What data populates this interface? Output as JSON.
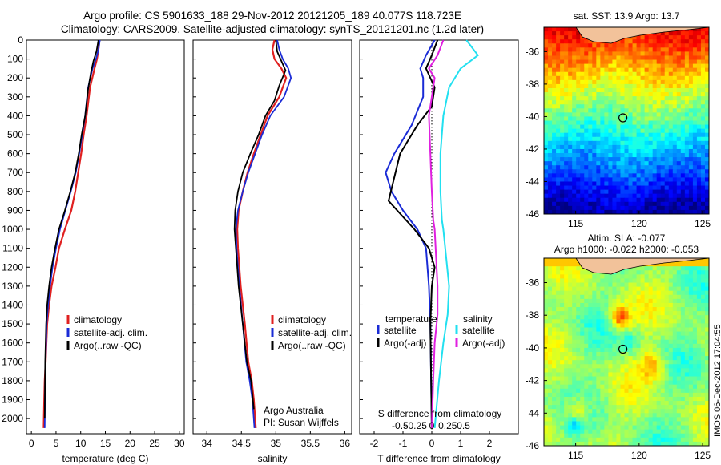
{
  "header": {
    "line1": "Argo profile: CS 5901633_188 29-Nov-2012 20121205_189 40.077S 118.723E",
    "line2": "Climatology: CARS2009. Satellite-adjusted climatology: synTS_20121201.nc (1.2d later)"
  },
  "side_label": "IMOS 06-Dec-2012 17:04:55",
  "colors": {
    "climatology": "#e02020",
    "satellite": "#1a2bd6",
    "argo": "#000000",
    "cyan": "#22e0f0",
    "magenta": "#e020e0",
    "land": "#f2c29a"
  },
  "chart_data": [
    {
      "type": "line",
      "xlabel": "temperature (deg C)",
      "ylabel": "",
      "xlim": [
        -1,
        31
      ],
      "ylim": [
        2080,
        0
      ],
      "xticks": [
        "0",
        "5",
        "10",
        "15",
        "20",
        "25",
        "30"
      ],
      "yticks": [
        "0",
        "100",
        "200",
        "300",
        "400",
        "500",
        "600",
        "700",
        "800",
        "900",
        "1000",
        "1100",
        "1200",
        "1300",
        "1400",
        "1500",
        "1600",
        "1700",
        "1800",
        "1900",
        "2000"
      ],
      "legend": [
        "climatology",
        "satellite-adj. clim.",
        "Argo(..raw -QC)"
      ],
      "legend_position": "lower-middle",
      "series": [
        {
          "name": "climatology",
          "color": "#e02020",
          "x": [
            13.8,
            13.6,
            13.3,
            12.8,
            11.9,
            11.2,
            10.6,
            10.1,
            9.5,
            8.9,
            8.1,
            6.8,
            5.6,
            4.9,
            4.1,
            3.6,
            3.2,
            2.9,
            2.7,
            2.6,
            2.5
          ],
          "y": [
            0,
            50,
            100,
            150,
            250,
            400,
            500,
            600,
            700,
            800,
            900,
            1000,
            1100,
            1200,
            1300,
            1400,
            1500,
            1700,
            1800,
            1900,
            2050
          ]
        },
        {
          "name": "satellite-adj. clim.",
          "color": "#1a2bd6",
          "x": [
            13.9,
            13.6,
            13.1,
            12.4,
            11.5,
            10.9,
            10.3,
            9.7,
            9.0,
            8.0,
            6.9,
            5.8,
            5.0,
            4.3,
            3.8,
            3.4,
            3.1,
            2.9,
            2.8,
            2.7
          ],
          "y": [
            0,
            50,
            100,
            150,
            250,
            400,
            500,
            600,
            700,
            800,
            900,
            1000,
            1100,
            1200,
            1300,
            1400,
            1500,
            1700,
            1800,
            2050
          ]
        },
        {
          "name": "Argo(..raw -QC)",
          "color": "#000000",
          "x": [
            13.6,
            13.2,
            12.6,
            12.1,
            11.5,
            10.9,
            10.2,
            9.6,
            8.9,
            7.9,
            6.8,
            5.6,
            4.8,
            4.1,
            3.6,
            3.2,
            3.0,
            2.8,
            2.7
          ],
          "y": [
            0,
            60,
            110,
            170,
            260,
            400,
            500,
            600,
            700,
            800,
            900,
            1000,
            1100,
            1200,
            1300,
            1400,
            1500,
            1700,
            2000
          ]
        }
      ]
    },
    {
      "type": "line",
      "xlabel": "salinity",
      "ylabel": "",
      "xlim": [
        33.8,
        36.1
      ],
      "ylim": [
        2080,
        0
      ],
      "xticks": [
        "34",
        "34.5",
        "35",
        "35.5",
        "36"
      ],
      "legend": [
        "climatology",
        "satellite-adj. clim.",
        "Argo(..raw -QC)"
      ],
      "legend_position": "lower-right",
      "annotations": [
        "Argo Australia",
        "PI: Susan Wijffels"
      ],
      "series": [
        {
          "name": "climatology",
          "color": "#e02020",
          "x": [
            34.98,
            34.95,
            34.98,
            35.08,
            35.15,
            35.05,
            34.88,
            34.78,
            34.68,
            34.59,
            34.52,
            34.46,
            34.44,
            34.45,
            34.49,
            34.55,
            34.6,
            34.65,
            34.68,
            34.71
          ],
          "y": [
            0,
            50,
            100,
            150,
            200,
            300,
            400,
            500,
            600,
            700,
            800,
            900,
            1000,
            1100,
            1300,
            1500,
            1700,
            1800,
            1900,
            2050
          ]
        },
        {
          "name": "satellite-adj. clim.",
          "color": "#1a2bd6",
          "x": [
            35.02,
            35.05,
            35.1,
            35.18,
            35.22,
            35.12,
            34.92,
            34.8,
            34.7,
            34.6,
            34.52,
            34.45,
            34.42,
            34.43,
            34.47,
            34.52,
            34.57,
            34.62,
            34.66,
            34.69
          ],
          "y": [
            0,
            50,
            100,
            150,
            200,
            300,
            400,
            500,
            600,
            700,
            800,
            900,
            1000,
            1100,
            1300,
            1500,
            1700,
            1800,
            1900,
            2050
          ]
        },
        {
          "name": "Argo(..raw -QC)",
          "color": "#000000",
          "x": [
            35.0,
            35.02,
            35.08,
            35.14,
            35.05,
            34.98,
            34.85,
            34.75,
            34.63,
            34.52,
            34.45,
            34.41,
            34.4,
            34.42,
            34.46,
            34.52,
            34.58,
            34.64,
            34.68
          ],
          "y": [
            0,
            60,
            110,
            160,
            240,
            320,
            400,
            500,
            600,
            700,
            800,
            900,
            1000,
            1100,
            1300,
            1500,
            1700,
            1800,
            1950
          ]
        }
      ]
    },
    {
      "type": "line",
      "xlabel": "T difference from climatology",
      "ylabel": "",
      "xlim": [
        -2.5,
        3.0
      ],
      "ylim": [
        2080,
        0
      ],
      "xticks": [
        "-2",
        "-1",
        "0",
        "1",
        "2"
      ],
      "secondary_xlabel": "S difference from climatology",
      "secondary_xticks": [
        "-0.5",
        "-0.25",
        "0",
        "0.25",
        "0.5"
      ],
      "legend": [
        "temperature",
        "satellite",
        "Argo(-adj)",
        "salinity",
        "satellite",
        "Argo(-adj)"
      ],
      "legend_position": "lower-middle",
      "series": [
        {
          "name": "satellite",
          "color": "#1a2bd6",
          "x": [
            0.1,
            -0.2,
            -0.4,
            -0.3,
            -0.3,
            -0.7,
            -1.3,
            -1.6,
            -1.4,
            -1.0,
            -0.5,
            -0.2,
            -0.1,
            -0.05,
            0.0
          ],
          "y": [
            0,
            80,
            150,
            200,
            300,
            450,
            600,
            700,
            800,
            900,
            1000,
            1100,
            1300,
            1500,
            2050
          ]
        },
        {
          "name": "Argo(-adj)",
          "color": "#000000",
          "x": [
            0.2,
            0.0,
            -0.2,
            0.1,
            0.0,
            -0.5,
            -1.1,
            -1.5,
            -1.2,
            -0.6,
            -0.1,
            0.1,
            0.0,
            -0.05,
            0.0
          ],
          "y": [
            0,
            80,
            150,
            250,
            350,
            450,
            600,
            850,
            900,
            1000,
            1100,
            1200,
            1300,
            1500,
            2050
          ]
        },
        {
          "name": "salinity satellite",
          "color": "#22e0f0",
          "x": [
            1.2,
            1.6,
            1.0,
            0.6,
            0.4,
            0.3,
            0.3,
            0.35,
            0.4,
            0.5,
            0.6,
            0.55,
            0.4,
            0.25,
            0.1
          ],
          "y": [
            0,
            80,
            150,
            250,
            400,
            600,
            800,
            950,
            1000,
            1150,
            1300,
            1450,
            1600,
            1800,
            2050
          ]
        },
        {
          "name": "salinity Argo(-adj)",
          "color": "#e020e0",
          "x": [
            0.4,
            0.2,
            -0.1,
            0.1,
            -0.1,
            -0.05,
            0.0,
            0.05,
            0.1,
            0.15,
            0.2,
            0.2,
            0.1,
            0.05,
            0.0
          ],
          "y": [
            0,
            80,
            150,
            200,
            400,
            600,
            800,
            950,
            1000,
            1150,
            1300,
            1450,
            1600,
            1800,
            2050
          ]
        }
      ]
    },
    {
      "type": "heatmap",
      "title": "sat. SST: 13.9 Argo: 13.7",
      "xlim": [
        112.5,
        125.5
      ],
      "ylim": [
        -46,
        -34.5
      ],
      "xticks": [
        "115",
        "120",
        "125"
      ],
      "yticks": [
        "-36",
        "-38",
        "-40",
        "-42",
        "-44",
        "-46"
      ],
      "marker": {
        "lon": 118.723,
        "lat": -40.077
      }
    },
    {
      "type": "heatmap",
      "title": "Altim. SLA: -0.077",
      "subtitle": "Argo h1000: -0.022 h2000: -0.053",
      "xlim": [
        112.5,
        125.5
      ],
      "ylim": [
        -46,
        -34.5
      ],
      "xticks": [
        "115",
        "120",
        "125"
      ],
      "yticks": [
        "-36",
        "-38",
        "-40",
        "-42",
        "-44",
        "-46"
      ],
      "marker": {
        "lon": 118.723,
        "lat": -40.077
      }
    }
  ]
}
